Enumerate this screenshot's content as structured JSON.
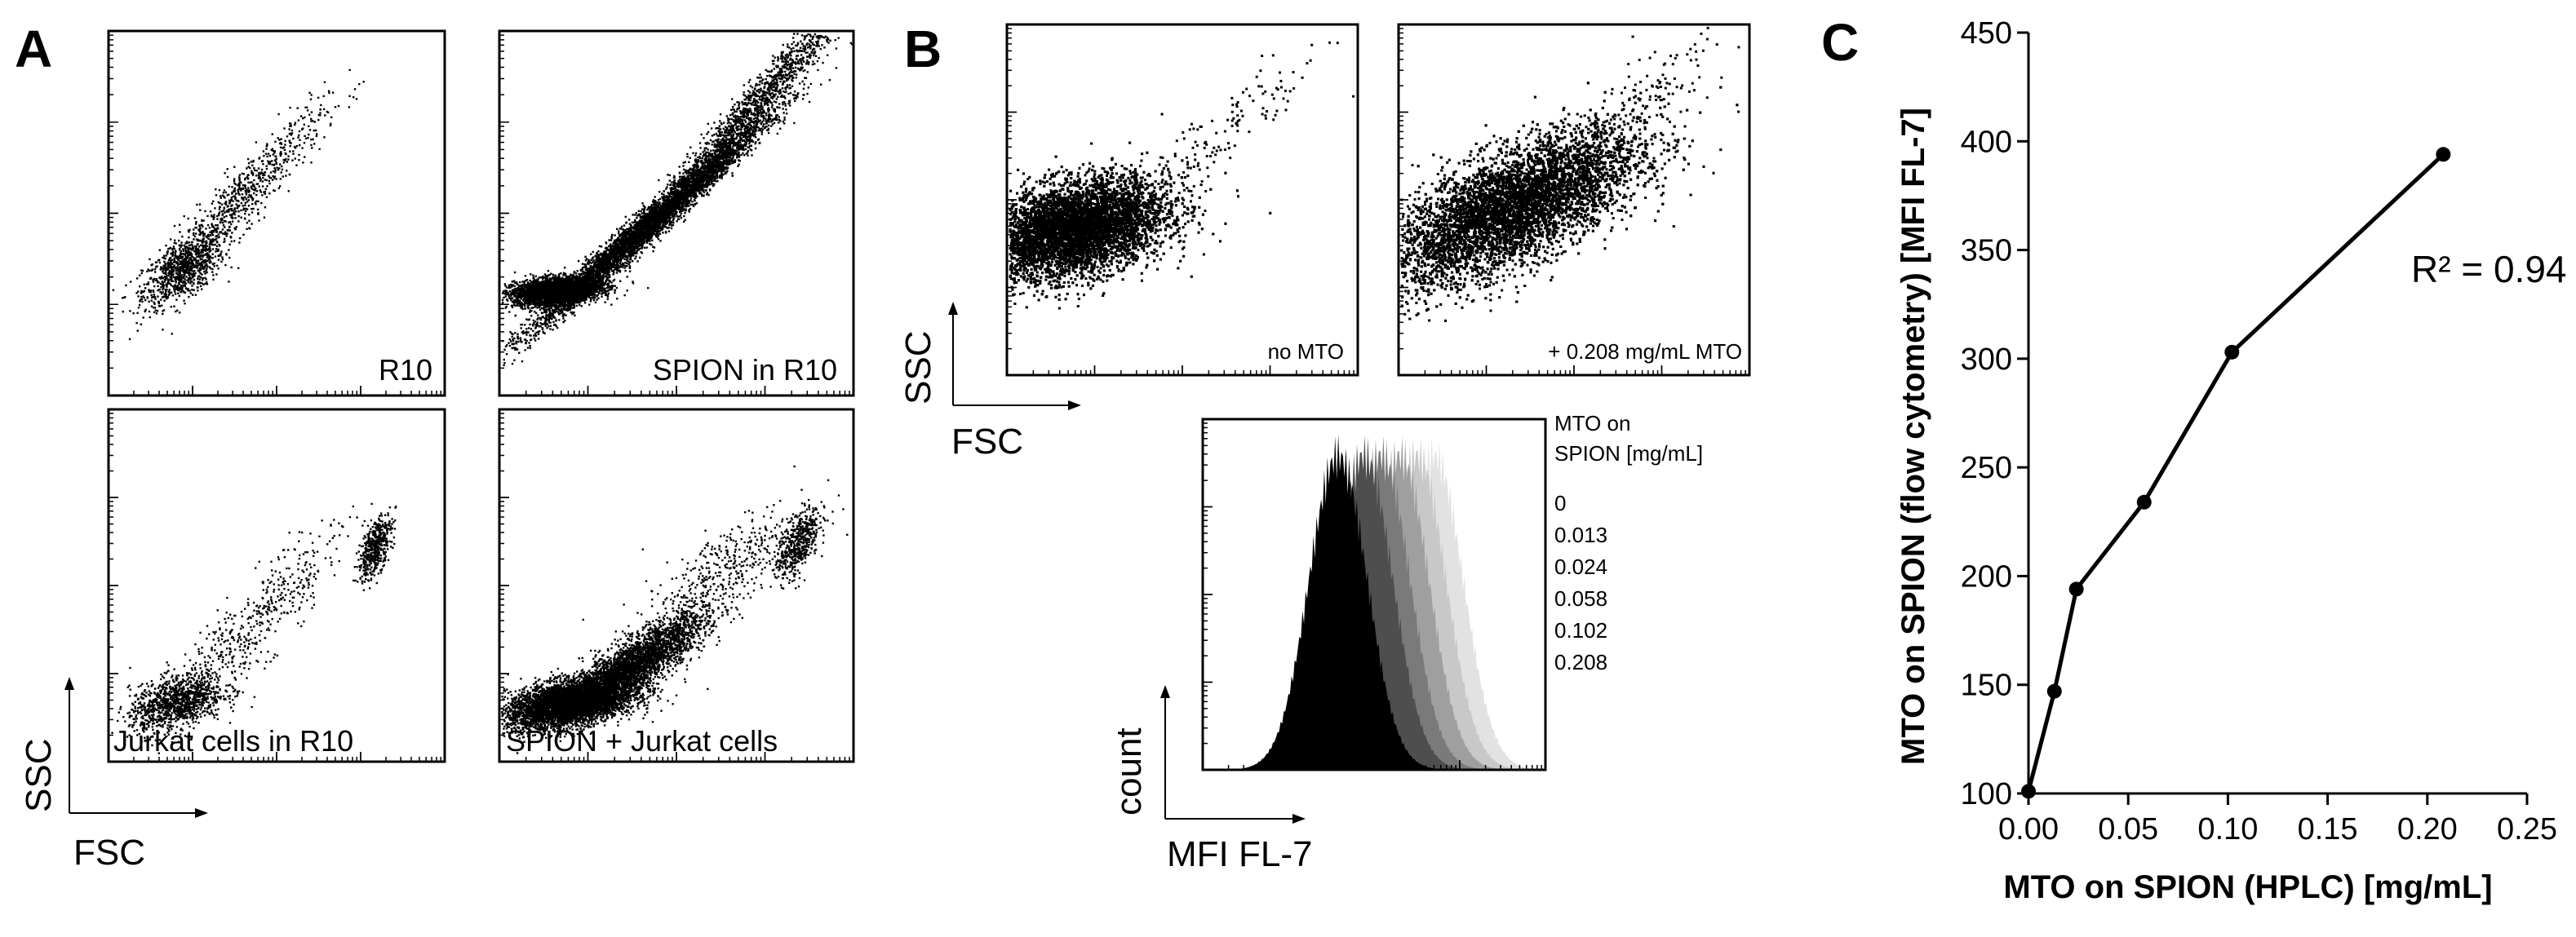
{
  "panels": {
    "a": "A",
    "b": "B",
    "c": "C"
  },
  "panel_a": {
    "plots": [
      {
        "label": "R10"
      },
      {
        "label": "SPION in R10"
      },
      {
        "label": "Jurkat cells in R10"
      },
      {
        "label": "SPION + Jurkat cells"
      }
    ],
    "x_axis": "FSC",
    "y_axis": "SSC"
  },
  "panel_b": {
    "scatter": [
      {
        "label": "no MTO"
      },
      {
        "label": "+ 0.208 mg/mL MTO"
      }
    ],
    "x_axis": "FSC",
    "y_axis": "SSC",
    "hist": {
      "x_axis": "MFI FL-7",
      "y_axis": "count",
      "legend_title_1": "MTO on",
      "legend_title_2": "SPION [mg/mL]",
      "legend": [
        "0",
        "0.013",
        "0.024",
        "0.058",
        "0.102",
        "0.208"
      ],
      "colors": [
        "#e2e2e2",
        "#c8c8c8",
        "#9f9f9f",
        "#7a7a7a",
        "#4e4e4e",
        "#000000"
      ]
    }
  },
  "chart_data": {
    "type": "line",
    "title": "",
    "xlabel": "MTO on SPION (HPLC) [mg/mL]",
    "ylabel": "MTO on SPION (flow cytometry) [MFI FL-7]",
    "x": [
      0,
      0.013,
      0.024,
      0.058,
      0.102,
      0.208
    ],
    "y": [
      101,
      147,
      194,
      234,
      303,
      394
    ],
    "xlim": [
      0,
      0.25
    ],
    "ylim": [
      100,
      450
    ],
    "xticks": [
      "0.00",
      "0.05",
      "0.10",
      "0.15",
      "0.20",
      "0.25"
    ],
    "yticks": [
      "100",
      "150",
      "200",
      "250",
      "300",
      "350",
      "400",
      "450"
    ],
    "annotation": "R² = 0.94",
    "grid": false
  }
}
